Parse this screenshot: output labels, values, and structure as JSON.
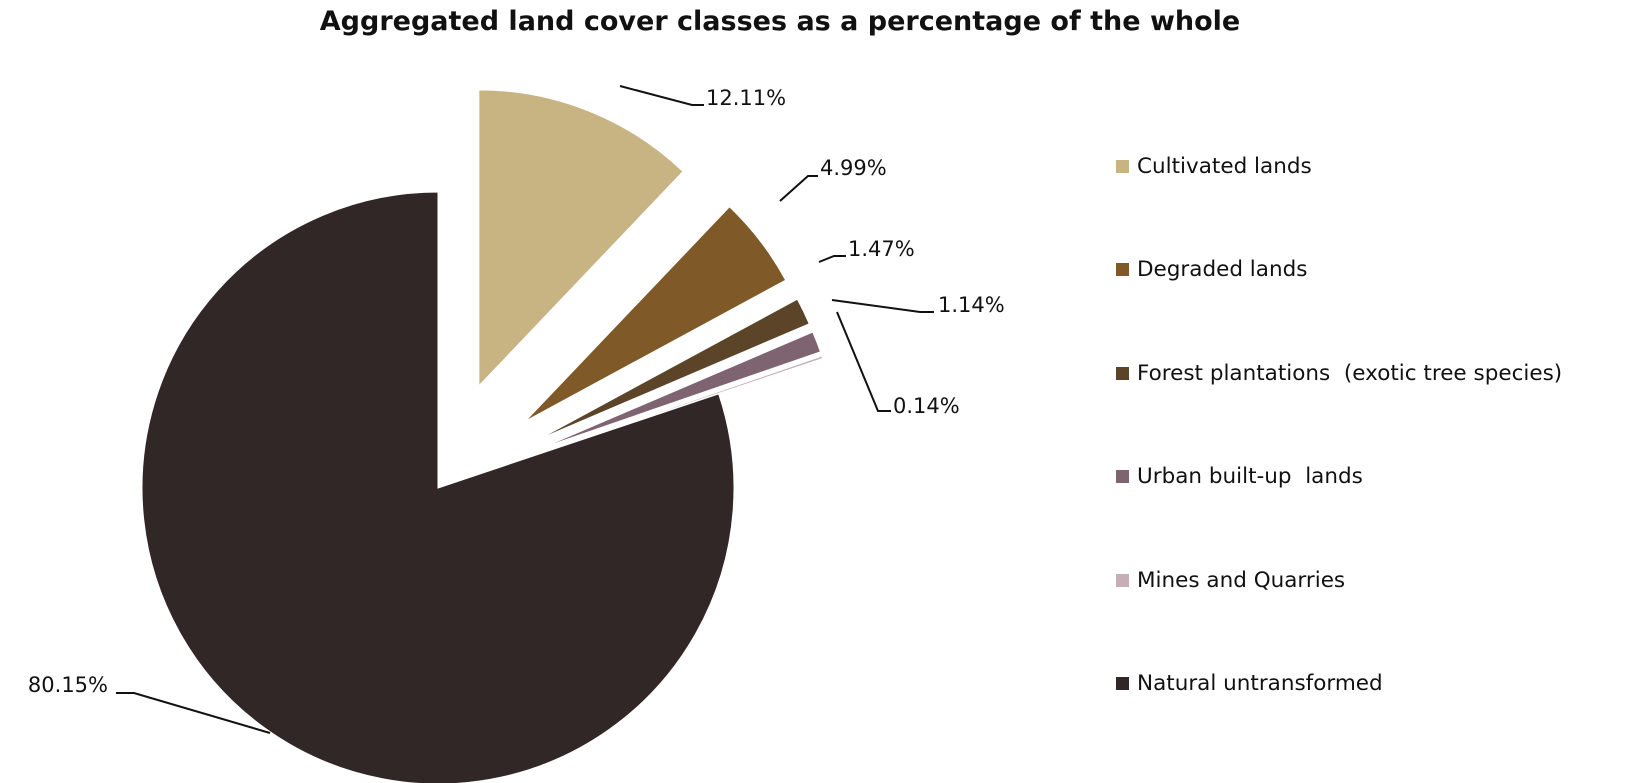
{
  "chart_data": {
    "type": "pie",
    "title": "Aggregated land cover classes as a percentage of the whole",
    "legend_position": "right",
    "slices": [
      {
        "name": "Cultivated lands",
        "value": 12.11,
        "label": "12.11%",
        "color": "#C8B383",
        "exploded": true
      },
      {
        "name": "Degraded lands",
        "value": 4.99,
        "label": "4.99%",
        "color": "#7F5A28",
        "exploded": true
      },
      {
        "name": "Forest plantations  (exotic tree species)",
        "value": 1.47,
        "label": "1.47%",
        "color": "#5B4428",
        "exploded": true
      },
      {
        "name": "Urban built-up  lands",
        "value": 1.14,
        "label": "1.14%",
        "color": "#7E6470",
        "exploded": true
      },
      {
        "name": "Mines and Quarries",
        "value": 0.14,
        "label": "0.14%",
        "color": "#C6AEB6",
        "exploded": true
      },
      {
        "name": "Natural untransformed",
        "value": 80.15,
        "label": "80.15%",
        "color": "#312727",
        "exploded": false
      }
    ]
  }
}
